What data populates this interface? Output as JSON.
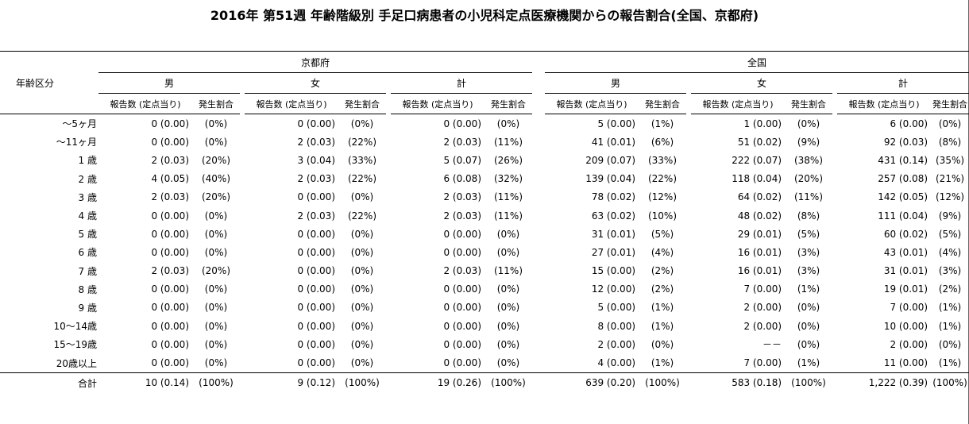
{
  "title": "2016年 第51週 年齢階級別 手足口病患者の小児科定点医療機関からの報告割合(全国、京都府)",
  "header": {
    "age_label": "年齢区分",
    "region_kyoto": "京都府",
    "region_national": "全国",
    "male": "男",
    "female": "女",
    "total": "計",
    "count_col": "報告数 (定点当り)",
    "rate_col": "発生割合"
  },
  "rows": [
    {
      "age": "～5ヶ月",
      "k": [
        [
          "0 (0.00)",
          "(0%)"
        ],
        [
          "0 (0.00)",
          "(0%)"
        ],
        [
          "0 (0.00)",
          "(0%)"
        ]
      ],
      "n": [
        [
          "5 (0.00)",
          "(1%)"
        ],
        [
          "1 (0.00)",
          "(0%)"
        ],
        [
          "6 (0.00)",
          "(0%)"
        ]
      ]
    },
    {
      "age": "～11ヶ月",
      "k": [
        [
          "0 (0.00)",
          "(0%)"
        ],
        [
          "2 (0.03)",
          "(22%)"
        ],
        [
          "2 (0.03)",
          "(11%)"
        ]
      ],
      "n": [
        [
          "41 (0.01)",
          "(6%)"
        ],
        [
          "51 (0.02)",
          "(9%)"
        ],
        [
          "92 (0.03)",
          "(8%)"
        ]
      ]
    },
    {
      "age": "1 歳",
      "k": [
        [
          "2 (0.03)",
          "(20%)"
        ],
        [
          "3 (0.04)",
          "(33%)"
        ],
        [
          "5 (0.07)",
          "(26%)"
        ]
      ],
      "n": [
        [
          "209 (0.07)",
          "(33%)"
        ],
        [
          "222 (0.07)",
          "(38%)"
        ],
        [
          "431 (0.14)",
          "(35%)"
        ]
      ]
    },
    {
      "age": "2 歳",
      "k": [
        [
          "4 (0.05)",
          "(40%)"
        ],
        [
          "2 (0.03)",
          "(22%)"
        ],
        [
          "6 (0.08)",
          "(32%)"
        ]
      ],
      "n": [
        [
          "139 (0.04)",
          "(22%)"
        ],
        [
          "118 (0.04)",
          "(20%)"
        ],
        [
          "257 (0.08)",
          "(21%)"
        ]
      ]
    },
    {
      "age": "3 歳",
      "k": [
        [
          "2 (0.03)",
          "(20%)"
        ],
        [
          "0 (0.00)",
          "(0%)"
        ],
        [
          "2 (0.03)",
          "(11%)"
        ]
      ],
      "n": [
        [
          "78 (0.02)",
          "(12%)"
        ],
        [
          "64 (0.02)",
          "(11%)"
        ],
        [
          "142 (0.05)",
          "(12%)"
        ]
      ]
    },
    {
      "age": "4 歳",
      "k": [
        [
          "0 (0.00)",
          "(0%)"
        ],
        [
          "2 (0.03)",
          "(22%)"
        ],
        [
          "2 (0.03)",
          "(11%)"
        ]
      ],
      "n": [
        [
          "63 (0.02)",
          "(10%)"
        ],
        [
          "48 (0.02)",
          "(8%)"
        ],
        [
          "111 (0.04)",
          "(9%)"
        ]
      ]
    },
    {
      "age": "5 歳",
      "k": [
        [
          "0 (0.00)",
          "(0%)"
        ],
        [
          "0 (0.00)",
          "(0%)"
        ],
        [
          "0 (0.00)",
          "(0%)"
        ]
      ],
      "n": [
        [
          "31 (0.01)",
          "(5%)"
        ],
        [
          "29 (0.01)",
          "(5%)"
        ],
        [
          "60 (0.02)",
          "(5%)"
        ]
      ]
    },
    {
      "age": "6 歳",
      "k": [
        [
          "0 (0.00)",
          "(0%)"
        ],
        [
          "0 (0.00)",
          "(0%)"
        ],
        [
          "0 (0.00)",
          "(0%)"
        ]
      ],
      "n": [
        [
          "27 (0.01)",
          "(4%)"
        ],
        [
          "16 (0.01)",
          "(3%)"
        ],
        [
          "43 (0.01)",
          "(4%)"
        ]
      ]
    },
    {
      "age": "7 歳",
      "k": [
        [
          "2 (0.03)",
          "(20%)"
        ],
        [
          "0 (0.00)",
          "(0%)"
        ],
        [
          "2 (0.03)",
          "(11%)"
        ]
      ],
      "n": [
        [
          "15 (0.00)",
          "(2%)"
        ],
        [
          "16 (0.01)",
          "(3%)"
        ],
        [
          "31 (0.01)",
          "(3%)"
        ]
      ]
    },
    {
      "age": "8 歳",
      "k": [
        [
          "0 (0.00)",
          "(0%)"
        ],
        [
          "0 (0.00)",
          "(0%)"
        ],
        [
          "0 (0.00)",
          "(0%)"
        ]
      ],
      "n": [
        [
          "12 (0.00)",
          "(2%)"
        ],
        [
          "7 (0.00)",
          "(1%)"
        ],
        [
          "19 (0.01)",
          "(2%)"
        ]
      ]
    },
    {
      "age": "9 歳",
      "k": [
        [
          "0 (0.00)",
          "(0%)"
        ],
        [
          "0 (0.00)",
          "(0%)"
        ],
        [
          "0 (0.00)",
          "(0%)"
        ]
      ],
      "n": [
        [
          "5 (0.00)",
          "(1%)"
        ],
        [
          "2 (0.00)",
          "(0%)"
        ],
        [
          "7 (0.00)",
          "(1%)"
        ]
      ]
    },
    {
      "age": "10～14歳",
      "k": [
        [
          "0 (0.00)",
          "(0%)"
        ],
        [
          "0 (0.00)",
          "(0%)"
        ],
        [
          "0 (0.00)",
          "(0%)"
        ]
      ],
      "n": [
        [
          "8 (0.00)",
          "(1%)"
        ],
        [
          "2 (0.00)",
          "(0%)"
        ],
        [
          "10 (0.00)",
          "(1%)"
        ]
      ]
    },
    {
      "age": "15～19歳",
      "k": [
        [
          "0 (0.00)",
          "(0%)"
        ],
        [
          "0 (0.00)",
          "(0%)"
        ],
        [
          "0 (0.00)",
          "(0%)"
        ]
      ],
      "n": [
        [
          "2 (0.00)",
          "(0%)"
        ],
        [
          "－－",
          "(0%)"
        ],
        [
          "2 (0.00)",
          "(0%)"
        ]
      ]
    },
    {
      "age": "20歳以上",
      "k": [
        [
          "0 (0.00)",
          "(0%)"
        ],
        [
          "0 (0.00)",
          "(0%)"
        ],
        [
          "0 (0.00)",
          "(0%)"
        ]
      ],
      "n": [
        [
          "4 (0.00)",
          "(1%)"
        ],
        [
          "7 (0.00)",
          "(1%)"
        ],
        [
          "11 (0.00)",
          "(1%)"
        ]
      ]
    }
  ],
  "total_row": {
    "age": "合計",
    "k": [
      [
        "10 (0.14)",
        "(100%)"
      ],
      [
        "9 (0.12)",
        "(100%)"
      ],
      [
        "19 (0.26)",
        "(100%)"
      ]
    ],
    "n": [
      [
        "639 (0.20)",
        "(100%)"
      ],
      [
        "583 (0.18)",
        "(100%)"
      ],
      [
        "1,222 (0.39)",
        "(100%)"
      ]
    ]
  }
}
